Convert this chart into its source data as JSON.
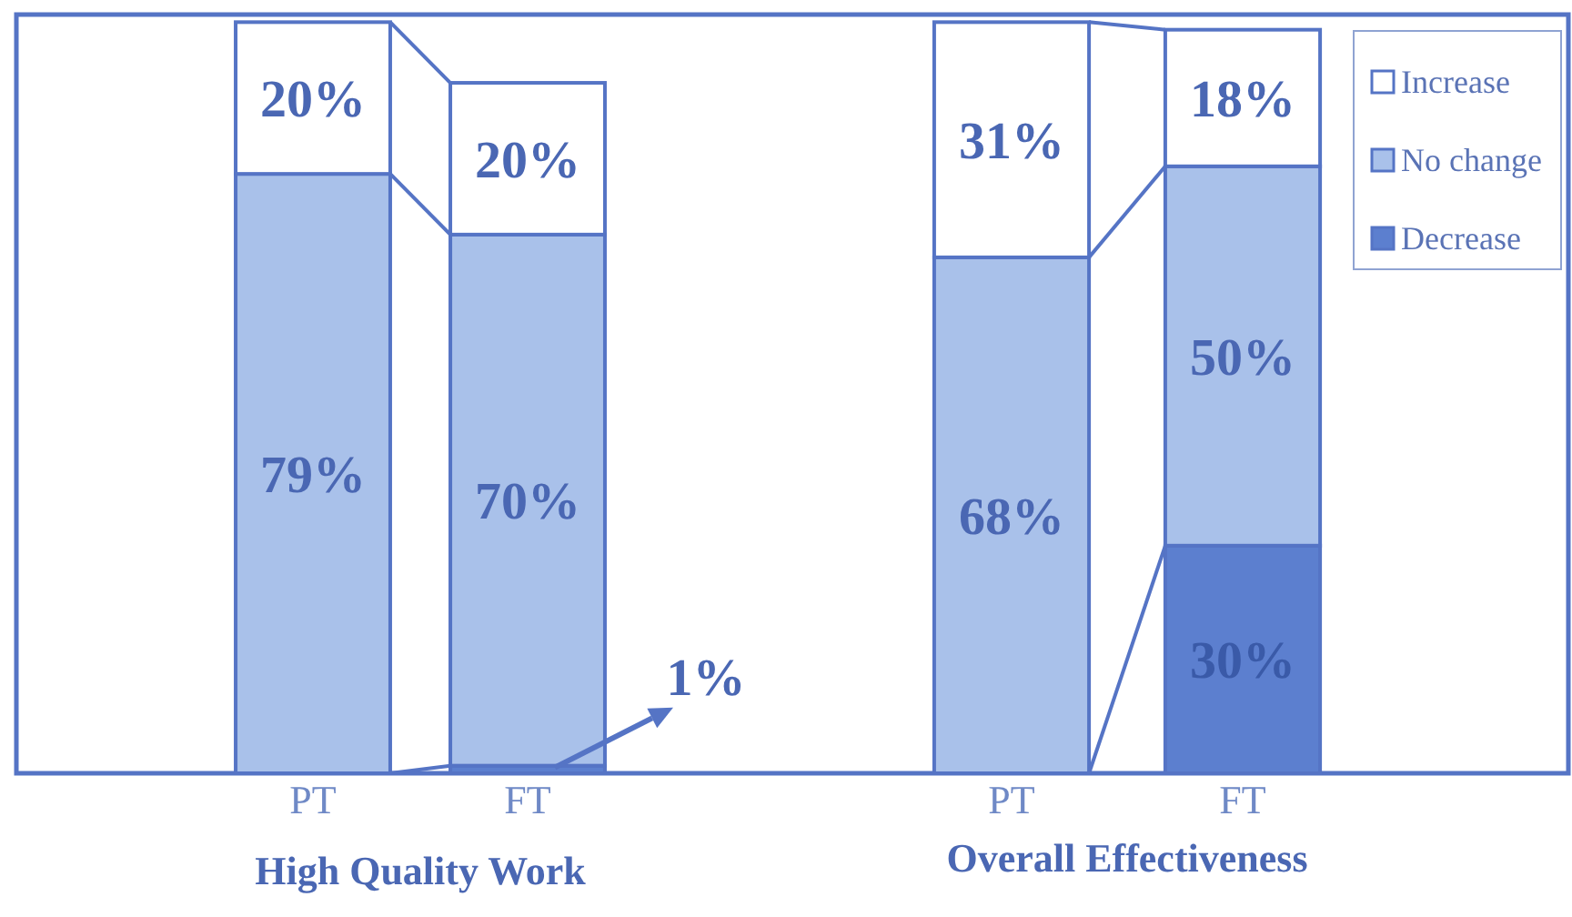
{
  "chart_data": [
    {
      "type": "bar",
      "stacked": true,
      "xlabel": "High Quality Work",
      "categories": [
        "PT",
        "FT"
      ],
      "ylim": [
        0,
        100
      ],
      "tick_labels": "x",
      "series": [
        {
          "color": "#5c7fcf",
          "values": [
            null,
            1
          ]
        },
        {
          "color": "#a9c1ea",
          "values": [
            79,
            70
          ],
          "value_labels": [
            "79%",
            "70%"
          ]
        },
        {
          "color": "#ffffff",
          "values": [
            20,
            20
          ],
          "value_labels": [
            "20%",
            "20%"
          ]
        }
      ],
      "annotations": [
        {
          "text": "1%",
          "x": "FT",
          "y": 1
        }
      ]
    },
    {
      "type": "bar",
      "stacked": true,
      "xlabel": "Overall Effectiveness",
      "categories": [
        "PT",
        "FT"
      ],
      "ylim": [
        0,
        100
      ],
      "tick_labels": "x",
      "legend": "top right",
      "series": [
        {
          "name": "Decrease",
          "color": "#5c7fcf",
          "values": [
            null,
            30
          ],
          "value_labels": [
            null,
            "30%"
          ]
        },
        {
          "name": "No change",
          "color": "#a9c1ea",
          "values": [
            68,
            50
          ],
          "value_labels": [
            "68%",
            "50%"
          ]
        },
        {
          "name": "Increase",
          "color": "#ffffff",
          "values": [
            31,
            18
          ],
          "value_labels": [
            "31%",
            "18%"
          ]
        }
      ]
    }
  ]
}
